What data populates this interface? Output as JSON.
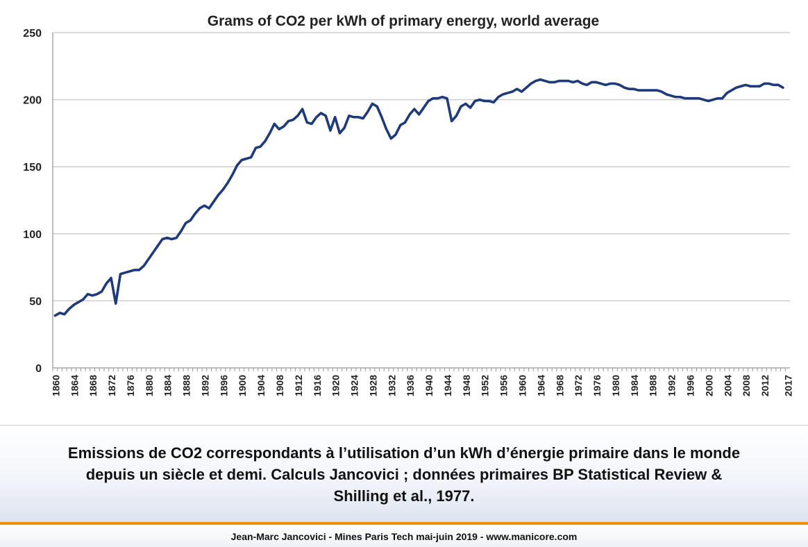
{
  "chart_data": {
    "type": "line",
    "title": "Grams of CO2 per kWh of primary energy, world average",
    "xlabel": "",
    "ylabel": "",
    "ylim": [
      0,
      250
    ],
    "yticks": [
      "0",
      "50",
      "100",
      "150",
      "200",
      "250"
    ],
    "xticks": [
      "1860",
      "1864",
      "1868",
      "1872",
      "1876",
      "1880",
      "1884",
      "1888",
      "1892",
      "1896",
      "1900",
      "1904",
      "1908",
      "1912",
      "1916",
      "1920",
      "1924",
      "1928",
      "1932",
      "1936",
      "1940",
      "1944",
      "1948",
      "1952",
      "1956",
      "1960",
      "1964",
      "1968",
      "1972",
      "1976",
      "1980",
      "1984",
      "1988",
      "1992",
      "1996",
      "2000",
      "2004",
      "2008",
      "2012",
      "2017"
    ],
    "grid": "horizontal",
    "line_color": "#1f3a78",
    "series": [
      {
        "x": [
          1860,
          1861,
          1862,
          1863,
          1864,
          1865,
          1866,
          1867,
          1868,
          1869,
          1870,
          1871,
          1872,
          1873,
          1874,
          1875,
          1876,
          1877,
          1878,
          1879,
          1880,
          1881,
          1882,
          1883,
          1884,
          1885,
          1886,
          1887,
          1888,
          1889,
          1890,
          1891,
          1892,
          1893,
          1894,
          1895,
          1896,
          1897,
          1898,
          1899,
          1900,
          1901,
          1902,
          1903,
          1904,
          1905,
          1906,
          1907,
          1908,
          1909,
          1910,
          1911,
          1912,
          1913,
          1914,
          1915,
          1916,
          1917,
          1918,
          1919,
          1920,
          1921,
          1922,
          1923,
          1924,
          1925,
          1926,
          1927,
          1928,
          1929,
          1930,
          1931,
          1932,
          1933,
          1934,
          1935,
          1936,
          1937,
          1938,
          1939,
          1940,
          1941,
          1942,
          1943,
          1944,
          1945,
          1946,
          1947,
          1948,
          1949,
          1950,
          1951,
          1952,
          1953,
          1954,
          1955,
          1956,
          1957,
          1958,
          1959,
          1960,
          1961,
          1962,
          1963,
          1964,
          1965,
          1966,
          1967,
          1968,
          1969,
          1970,
          1971,
          1972,
          1973,
          1974,
          1975,
          1976,
          1977,
          1978,
          1979,
          1980,
          1981,
          1982,
          1983,
          1984,
          1985,
          1986,
          1987,
          1988,
          1989,
          1990,
          1991,
          1992,
          1993,
          1994,
          1995,
          1996,
          1997,
          1998,
          1999,
          2000,
          2001,
          2002,
          2003,
          2004,
          2005,
          2006,
          2007,
          2008,
          2009,
          2010,
          2011,
          2012,
          2013,
          2014,
          2015,
          2016
        ],
        "values": [
          39,
          41,
          40,
          44,
          47,
          49,
          51,
          55,
          54,
          55,
          57,
          63,
          67,
          48,
          70,
          71,
          72,
          73,
          73,
          76,
          81,
          86,
          91,
          96,
          97,
          96,
          97,
          102,
          108,
          110,
          115,
          119,
          121,
          119,
          124,
          129,
          133,
          138,
          144,
          151,
          155,
          156,
          157,
          164,
          165,
          169,
          175,
          182,
          178,
          180,
          184,
          185,
          188,
          193,
          183,
          182,
          187,
          190,
          188,
          177,
          187,
          175,
          179,
          188,
          187,
          187,
          186,
          191,
          197,
          195,
          187,
          178,
          171,
          174,
          181,
          183,
          189,
          193,
          189,
          194,
          199,
          201,
          201,
          202,
          201,
          184,
          188,
          195,
          197,
          194,
          199,
          200,
          199,
          199,
          198,
          202,
          204,
          205,
          206,
          208,
          206,
          209,
          212,
          214,
          215,
          214,
          213,
          213,
          214,
          214,
          214,
          213,
          214,
          212,
          211,
          213,
          213,
          212,
          211,
          212,
          212,
          211,
          209,
          208,
          208,
          207,
          207,
          207,
          207,
          207,
          206,
          204,
          203,
          202,
          202,
          201,
          201,
          201,
          201,
          200,
          199,
          200,
          201,
          201,
          205,
          207,
          209,
          210,
          211,
          210,
          210,
          210,
          212,
          212,
          211,
          211,
          209
        ]
      }
    ]
  },
  "caption": {
    "line1": "Emissions de CO2 correspondants à l’utilisation d’un kWh d’énergie primaire dans le monde",
    "line2": "depuis un siècle et demi. Calculs Jancovici ; données primaires BP Statistical Review &",
    "line3": "Shilling et al., 1977."
  },
  "footer": {
    "text": "Jean-Marc Jancovici - Mines Paris Tech mai-juin 2019 - www.manicore.com"
  }
}
